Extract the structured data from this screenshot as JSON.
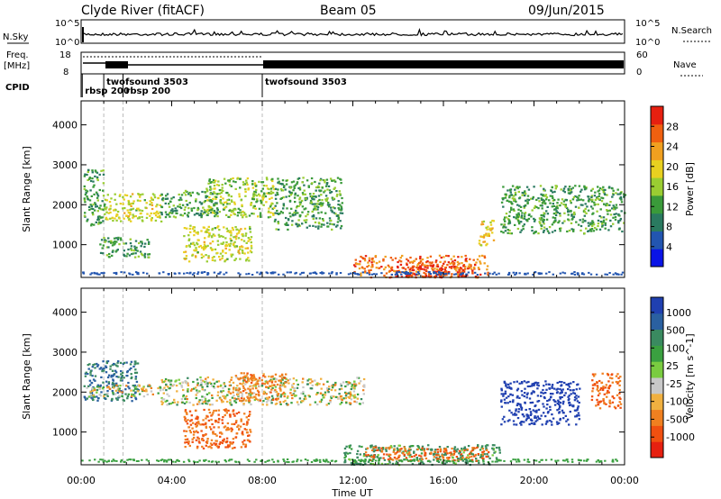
{
  "header": {
    "station": "Clyde River (fitACF)",
    "beam": "Beam 05",
    "date": "09/Jun/2015"
  },
  "side_labels": {
    "nsky": "N.Sky",
    "nsearch": "N.Search",
    "freq_line1": "Freq.",
    "freq_line2": "[MHz]",
    "nave": "Nave",
    "cpid": "CPID"
  },
  "top_panel_ticks": {
    "nsky_left": [
      "10^5",
      "10^0"
    ],
    "nsearch_right": [
      "10^5",
      "10^0"
    ],
    "freq_left": [
      "18",
      "8"
    ],
    "nave_right": [
      "60",
      "0"
    ]
  },
  "cpid_labels": [
    {
      "text": "rbsp 200",
      "hour": 0.05,
      "row": 1
    },
    {
      "text": "twofsound 3503",
      "hour": 1.0,
      "row": 0
    },
    {
      "text": "rbsp 200",
      "hour": 1.85,
      "row": 1
    },
    {
      "text": "twofsound 3503",
      "hour": 8.0,
      "row": 0
    }
  ],
  "chart_data": [
    {
      "type": "heatmap",
      "panel": "power",
      "xlabel": "",
      "ylabel": "Slant Range [km]",
      "xlim_hours": [
        0,
        24
      ],
      "ylim_km": [
        180,
        4600
      ],
      "yticks": [
        1000,
        2000,
        3000,
        4000
      ],
      "colorbar_label": "Power [dB]",
      "colorbar_ticks": [
        4,
        8,
        12,
        16,
        20,
        24,
        28
      ],
      "colorbar_range": [
        0,
        32
      ],
      "colors": [
        "#0a14e6",
        "#2255b0",
        "#2a7a60",
        "#3a9a3a",
        "#9acd32",
        "#e8d020",
        "#f0a020",
        "#f06010",
        "#e62010"
      ],
      "regions": [
        {
          "h0": 0.1,
          "h1": 1.0,
          "r0": 1500,
          "r1": 2900,
          "level": 12
        },
        {
          "h0": 1.0,
          "h1": 3.5,
          "r0": 1600,
          "r1": 2300,
          "level": 18
        },
        {
          "h0": 0.8,
          "h1": 3.0,
          "r0": 700,
          "r1": 1200,
          "level": 12
        },
        {
          "h0": 3.5,
          "h1": 6.0,
          "r0": 1700,
          "r1": 2400,
          "level": 12
        },
        {
          "h0": 4.5,
          "h1": 7.5,
          "r0": 600,
          "r1": 1500,
          "level": 18
        },
        {
          "h0": 5.5,
          "h1": 8.5,
          "r0": 1700,
          "r1": 2700,
          "level": 16
        },
        {
          "h0": 8.5,
          "h1": 11.5,
          "r0": 1400,
          "r1": 2700,
          "level": 12
        },
        {
          "h0": 12.0,
          "h1": 18.0,
          "r0": 200,
          "r1": 750,
          "level": 26
        },
        {
          "h0": 13.5,
          "h1": 17.0,
          "r0": 200,
          "r1": 500,
          "level": 29
        },
        {
          "h0": 17.5,
          "h1": 18.2,
          "r0": 1000,
          "r1": 1700,
          "level": 20
        },
        {
          "h0": 18.5,
          "h1": 24.0,
          "r0": 1300,
          "r1": 2500,
          "level": 12
        }
      ]
    },
    {
      "type": "heatmap",
      "panel": "velocity",
      "xlabel": "Time UT",
      "ylabel": "Slant Range [km]",
      "xlim_hours": [
        0,
        24
      ],
      "ylim_km": [
        180,
        4600
      ],
      "xticks": [
        "00:00",
        "04:00",
        "08:00",
        "12:00",
        "16:00",
        "20:00",
        "00:00"
      ],
      "yticks": [
        1000,
        2000,
        3000,
        4000
      ],
      "colorbar_label": "Velocity [m s^-1]",
      "colorbar_ticks": [
        1000,
        500,
        100,
        25,
        -25,
        -100,
        -500,
        -1000
      ],
      "colors": [
        "#2040b0",
        "#2a60a0",
        "#3a8a60",
        "#3aa040",
        "#7acc40",
        "#c8c8c8",
        "#f0b040",
        "#f08020",
        "#f05010",
        "#e62010"
      ],
      "regions": [
        {
          "h0": 0.1,
          "h1": 2.5,
          "r0": 1800,
          "r1": 2800,
          "v": 300
        },
        {
          "h0": 0.1,
          "h1": 3.5,
          "r0": 1900,
          "r1": 2200,
          "v": 0
        },
        {
          "h0": 3.5,
          "h1": 12.5,
          "r0": 1700,
          "r1": 2400,
          "v": 0
        },
        {
          "h0": 4.5,
          "h1": 7.5,
          "r0": 600,
          "r1": 1600,
          "v": -300
        },
        {
          "h0": 6.5,
          "h1": 9.0,
          "r0": 1800,
          "r1": 2500,
          "v": -200
        },
        {
          "h0": 11.5,
          "h1": 18.5,
          "r0": 200,
          "r1": 700,
          "v": 150
        },
        {
          "h0": 12.5,
          "h1": 18.0,
          "r0": 300,
          "r1": 650,
          "v": -300
        },
        {
          "h0": 18.5,
          "h1": 22.0,
          "r0": 1200,
          "r1": 2300,
          "v": 800
        },
        {
          "h0": 22.5,
          "h1": 23.8,
          "r0": 1600,
          "r1": 2500,
          "v": -300
        }
      ]
    }
  ]
}
